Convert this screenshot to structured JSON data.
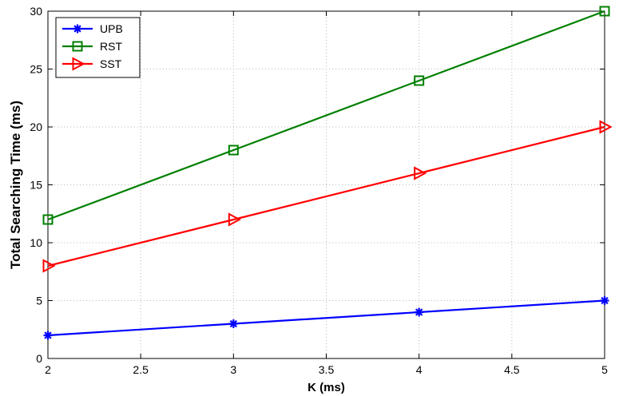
{
  "chart_data": {
    "type": "line",
    "xlabel": "K (ms)",
    "ylabel": "Total Searching Time (ms)",
    "xlim": [
      2,
      5
    ],
    "ylim": [
      0,
      30
    ],
    "x_ticks": [
      "2",
      "2.5",
      "3",
      "3.5",
      "4",
      "4.5",
      "5"
    ],
    "y_ticks": [
      "0",
      "5",
      "10",
      "15",
      "20",
      "25",
      "30"
    ],
    "grid": true,
    "legend_position": "top-left",
    "x": [
      2,
      3,
      4,
      5
    ],
    "series": [
      {
        "name": "UPB",
        "values": [
          2,
          3,
          4,
          5
        ],
        "color": "#0000ff",
        "marker": "asterisk"
      },
      {
        "name": "RST",
        "values": [
          12,
          18,
          24,
          30
        ],
        "color": "#008000",
        "marker": "square"
      },
      {
        "name": "SST",
        "values": [
          8,
          12,
          16,
          20
        ],
        "color": "#ff0000",
        "marker": "triangle-right"
      }
    ]
  }
}
